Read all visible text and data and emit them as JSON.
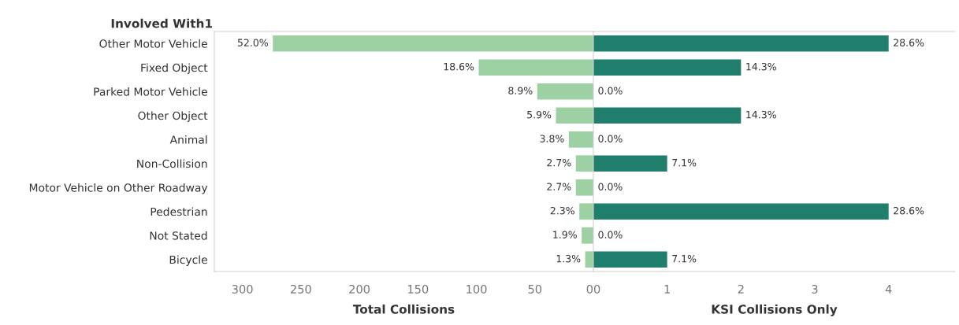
{
  "chart_data": [
    {
      "type": "bar",
      "orientation": "horizontal",
      "ylabel": "Involved With1",
      "xlabel": "Total Collisions",
      "categories": [
        "Other Motor Vehicle",
        "Fixed Object",
        "Parked Motor Vehicle",
        "Other Object",
        "Animal",
        "Non-Collision",
        "Motor Vehicle on Other Roadway",
        "Pedestrian",
        "Not Stated",
        "Bicycle"
      ],
      "values": [
        274,
        98,
        48,
        32,
        21,
        15,
        15,
        12,
        10,
        7
      ],
      "annotations": [
        {
          "text": "52.0%",
          "x": 274,
          "y": "Other Motor Vehicle"
        },
        {
          "text": "18.6%",
          "x": 98,
          "y": "Fixed Object"
        },
        {
          "text": "8.9%",
          "x": 48,
          "y": "Parked Motor Vehicle"
        },
        {
          "text": "5.9%",
          "x": 32,
          "y": "Other Object"
        },
        {
          "text": "3.8%",
          "x": 21,
          "y": "Animal"
        },
        {
          "text": "2.7%",
          "x": 15,
          "y": "Non-Collision"
        },
        {
          "text": "2.7%",
          "x": 15,
          "y": "Motor Vehicle on Other Roadway"
        },
        {
          "text": "2.3%",
          "x": 12,
          "y": "Pedestrian"
        },
        {
          "text": "1.9%",
          "x": 10,
          "y": "Not Stated"
        },
        {
          "text": "1.3%",
          "x": 7,
          "y": "Bicycle"
        }
      ],
      "color": "#9dd1a3",
      "xlim": [
        324,
        0
      ],
      "xticks": [
        300,
        250,
        200,
        150,
        100,
        50,
        0
      ],
      "grid": false
    },
    {
      "type": "bar",
      "orientation": "horizontal",
      "xlabel": "KSI Collisions Only",
      "categories": [
        null,
        null,
        null,
        null,
        null,
        null,
        null,
        null,
        null,
        null
      ],
      "values": [
        4,
        2,
        0,
        2,
        0,
        1,
        0,
        4,
        0,
        1
      ],
      "annotations": [
        {
          "text": "28.6%",
          "x": 4
        },
        {
          "text": "14.3%",
          "x": 2
        },
        {
          "text": "0.0%",
          "x": 0
        },
        {
          "text": "14.3%",
          "x": 2
        },
        {
          "text": "0.0%",
          "x": 0
        },
        {
          "text": "7.1%",
          "x": 1
        },
        {
          "text": "0.0%",
          "x": 0
        },
        {
          "text": "28.6%",
          "x": 4
        },
        {
          "text": "0.0%",
          "x": 0
        },
        {
          "text": "7.1%",
          "x": 1
        }
      ],
      "color": "#1f7f6c",
      "xlim": [
        0,
        4.9
      ],
      "xticks": [
        0,
        1,
        2,
        3,
        4
      ],
      "grid": false
    }
  ]
}
